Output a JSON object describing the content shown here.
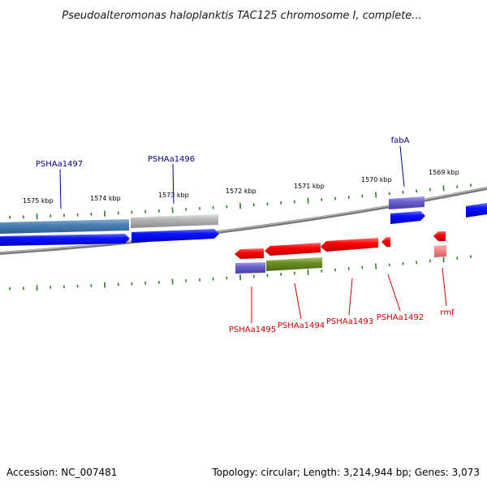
{
  "title": "Pseudoalteromonas haloplanktis TAC125 chromosome I, complete...",
  "footer": {
    "accession": "Accession: NC_007481",
    "summary": "Topology: circular; Length: 3,214,944 bp; Genes: 3,073"
  },
  "colors": {
    "forward_cds": "#0000ee",
    "reverse_cds": "#ee0000",
    "tick": "#2a7a2a",
    "backbone": "#7a7a7a",
    "forward_label": "#00008b",
    "reverse_label": "#cc0000"
  },
  "ticks": [
    {
      "label": "1575 kbp"
    },
    {
      "label": "1574 kbp"
    },
    {
      "label": "1573 kbp"
    },
    {
      "label": "1572 kbp"
    },
    {
      "label": "1571 kbp"
    },
    {
      "label": "1570 kbp"
    },
    {
      "label": "1569 kbp"
    }
  ],
  "genes": {
    "forward": [
      {
        "label": "PSHAa1497"
      },
      {
        "label": "PSHAa1496"
      },
      {
        "label": "fabA"
      }
    ],
    "reverse": [
      {
        "label": "PSHAa1495"
      },
      {
        "label": "PSHAa1494"
      },
      {
        "label": "PSHAa1493"
      },
      {
        "label": "PSHAa1492"
      },
      {
        "label": "rmf"
      }
    ]
  }
}
